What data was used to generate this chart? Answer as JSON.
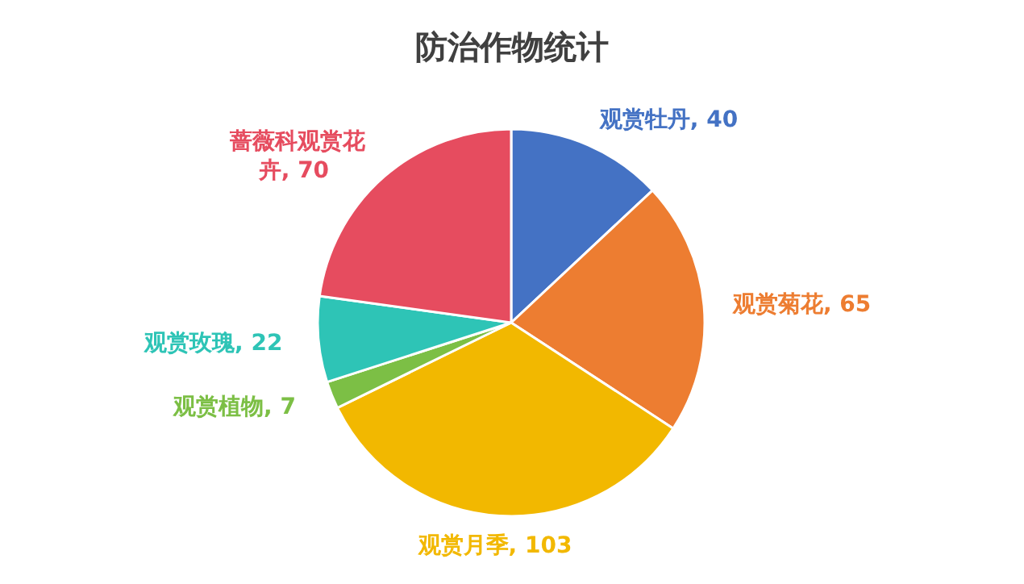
{
  "chart_data": {
    "type": "pie",
    "title": "防治作物统计",
    "categories": [
      "观赏牡丹",
      "观赏菊花",
      "观赏月季",
      "观赏植物",
      "观赏玫瑰",
      "蔷薇科观赏花卉"
    ],
    "values": [
      40,
      65,
      103,
      7,
      22,
      70
    ],
    "value_labels": [
      ", 40",
      ", 65",
      ", 103",
      ", 7",
      ", 22",
      ", 70"
    ],
    "colors": [
      "#4472c4",
      "#ed7d31",
      "#f2b800",
      "#7cbf45",
      "#2ec4b6",
      "#e64c5f"
    ]
  }
}
